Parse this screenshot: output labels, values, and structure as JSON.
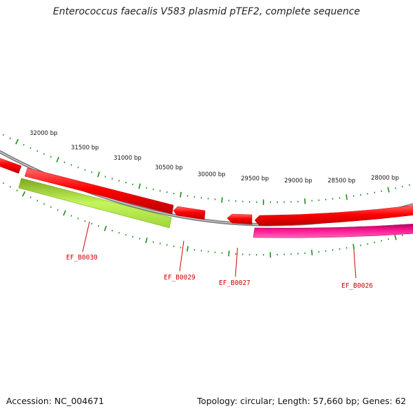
{
  "title": "Enterococcus faecalis V583 plasmid pTEF2, complete sequence",
  "ruler": {
    "tick_labels": [
      "32000 bp",
      "31500 bp",
      "31000 bp",
      "30500 bp",
      "30000 bp",
      "29500 bp",
      "29000 bp",
      "28500 bp",
      "28000 bp"
    ]
  },
  "genes": [
    {
      "label": "EF_B0030",
      "color": "#a8e63a"
    },
    {
      "label": "EF_B0029",
      "color": "#ee0000"
    },
    {
      "label": "EF_B0027",
      "color": "#ee0000"
    },
    {
      "label": "EF_B0026",
      "color": "#e8007a"
    }
  ],
  "footer": {
    "accession": "Accession: NC_004671",
    "topology": "Topology: circular; Length: 57,660 bp; Genes: 62"
  },
  "colors": {
    "backbone": "#888888",
    "forward_genes": "#ee0000",
    "green_gene": "#a8e63a",
    "magenta_gene": "#e8007a",
    "ticks": "#1a8a1a",
    "labels": "#cc0000"
  }
}
